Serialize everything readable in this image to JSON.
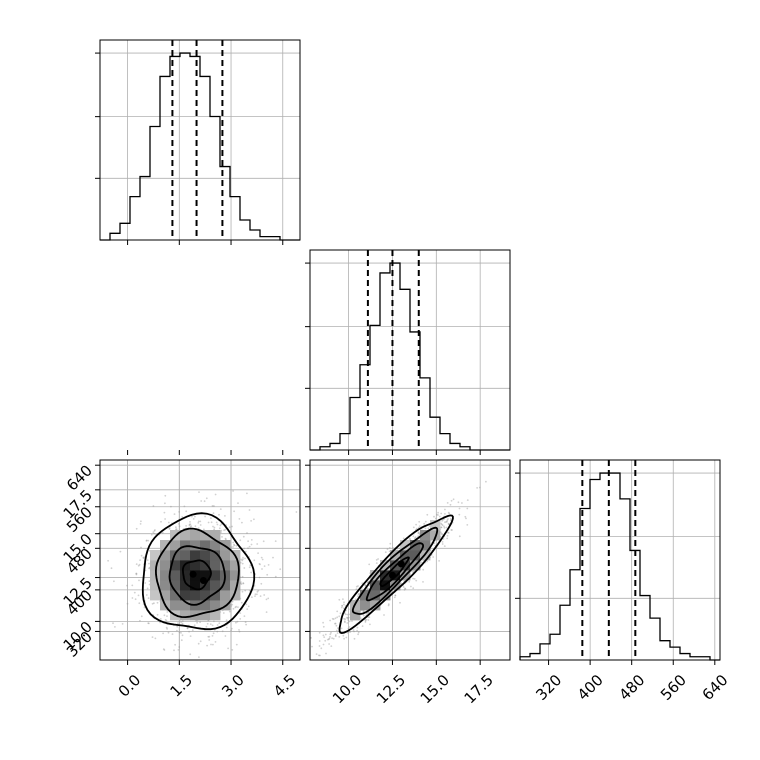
{
  "chart_data": {
    "type": "corner",
    "grid": true,
    "parameters": [
      {
        "id": "p0",
        "range": [
          -0.8,
          5.0
        ],
        "ticks": [
          0.0,
          1.5,
          3.0,
          4.5
        ],
        "tick_labels": [
          "0.0",
          "1.5",
          "3.0",
          "4.5"
        ],
        "quantiles": [
          1.3,
          2.0,
          2.75
        ],
        "hist": {
          "start": -0.8,
          "bin_width": 0.29,
          "counts": [
            0,
            2,
            5,
            13,
            19,
            34,
            49,
            55,
            56,
            55,
            49,
            37,
            22,
            13,
            6,
            3,
            1,
            1,
            0,
            0
          ]
        }
      },
      {
        "id": "p1",
        "range": [
          7.8,
          19.2
        ],
        "ticks": [
          10.0,
          12.5,
          15.0,
          17.5
        ],
        "tick_labels": [
          "10.0",
          "12.5",
          "15.0",
          "17.5"
        ],
        "quantiles": [
          11.1,
          12.5,
          14.0
        ],
        "hist": {
          "start": 7.8,
          "bin_width": 0.57,
          "counts": [
            0,
            1,
            2,
            5,
            16,
            26,
            38,
            54,
            57,
            49,
            36,
            22,
            10,
            5,
            2,
            1,
            0,
            0,
            0,
            0
          ]
        }
      },
      {
        "id": "p2",
        "range": [
          265,
          650
        ],
        "ticks": [
          320,
          400,
          480,
          560,
          640
        ],
        "tick_labels": [
          "320",
          "400",
          "480",
          "560",
          "640"
        ],
        "quantiles": [
          385,
          436,
          487
        ],
        "hist": {
          "start": 265,
          "bin_width": 19.25,
          "counts": [
            1,
            2,
            5,
            8,
            17,
            28,
            47,
            56,
            58,
            58,
            50,
            34,
            20,
            13,
            6,
            4,
            2,
            1,
            1,
            0
          ]
        }
      }
    ],
    "panels_2d": [
      {
        "x": "p0",
        "y": "p1",
        "center": [
          2.0,
          12.6
        ],
        "sigma": [
          0.8,
          1.6
        ],
        "corr": 0.0,
        "dense": [
          [
            1.85,
            12.65
          ],
          [
            2.1,
            12.5
          ]
        ]
      },
      {
        "x": "p0",
        "y": "p2",
        "center": [
          2.0,
          430
        ],
        "sigma": [
          0.8,
          55
        ],
        "corr": 0.0,
        "dense": [
          [
            1.9,
            430
          ],
          [
            2.2,
            418
          ]
        ]
      },
      {
        "x": "p1",
        "y": "p2",
        "center": [
          12.6,
          434
        ],
        "sigma": [
          1.6,
          55
        ],
        "corr": 0.93,
        "dense": [
          [
            12.5,
            428
          ],
          [
            13.0,
            450
          ]
        ]
      }
    ],
    "contour_levels_sigma": [
      0.5,
      1.0,
      1.5,
      2.0
    ]
  }
}
